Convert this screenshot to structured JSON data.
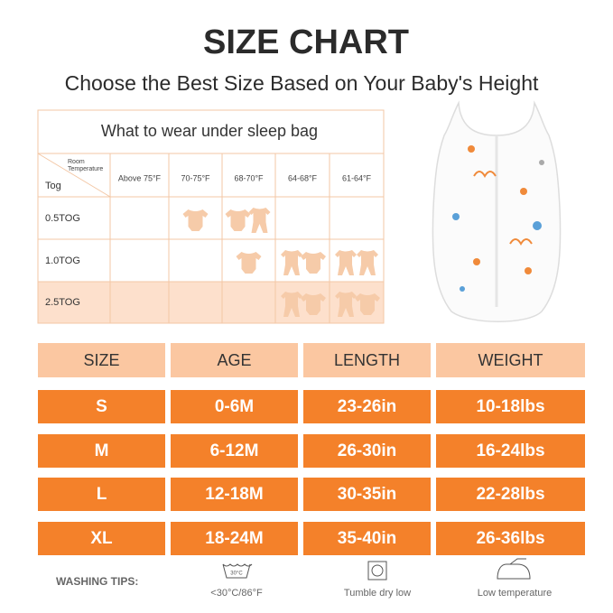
{
  "header": {
    "title": "SIZE CHART",
    "subtitle": "Choose the Best Size Based on Your Baby's Height"
  },
  "tog_table": {
    "title": "What to wear under sleep bag",
    "corner_top": [
      "Room",
      "Temperature"
    ],
    "corner_bottom": "Tog",
    "columns": [
      "Above 75°F",
      "70-75°F",
      "68-70°F",
      "64-68°F",
      "61-64°F"
    ],
    "rows": [
      "0.5TOG",
      "1.0TOG",
      "2.5TOG"
    ]
  },
  "size_table": {
    "columns": [
      "SIZE",
      "AGE",
      "LENGTH",
      "WEIGHT"
    ],
    "rows": [
      [
        "S",
        "0-6M",
        "23-26in",
        "10-18lbs"
      ],
      [
        "M",
        "6-12M",
        "26-30in",
        "16-24lbs"
      ],
      [
        "L",
        "12-18M",
        "30-35in",
        "22-28lbs"
      ],
      [
        "XL",
        "18-24M",
        "35-40in",
        "26-36lbs"
      ]
    ]
  },
  "washing": {
    "label": "WASHING TIPS:",
    "wash_temp": "30°C",
    "tips": [
      "<30°C/86°F",
      "Tumble dry low",
      "Low temperature"
    ]
  }
}
